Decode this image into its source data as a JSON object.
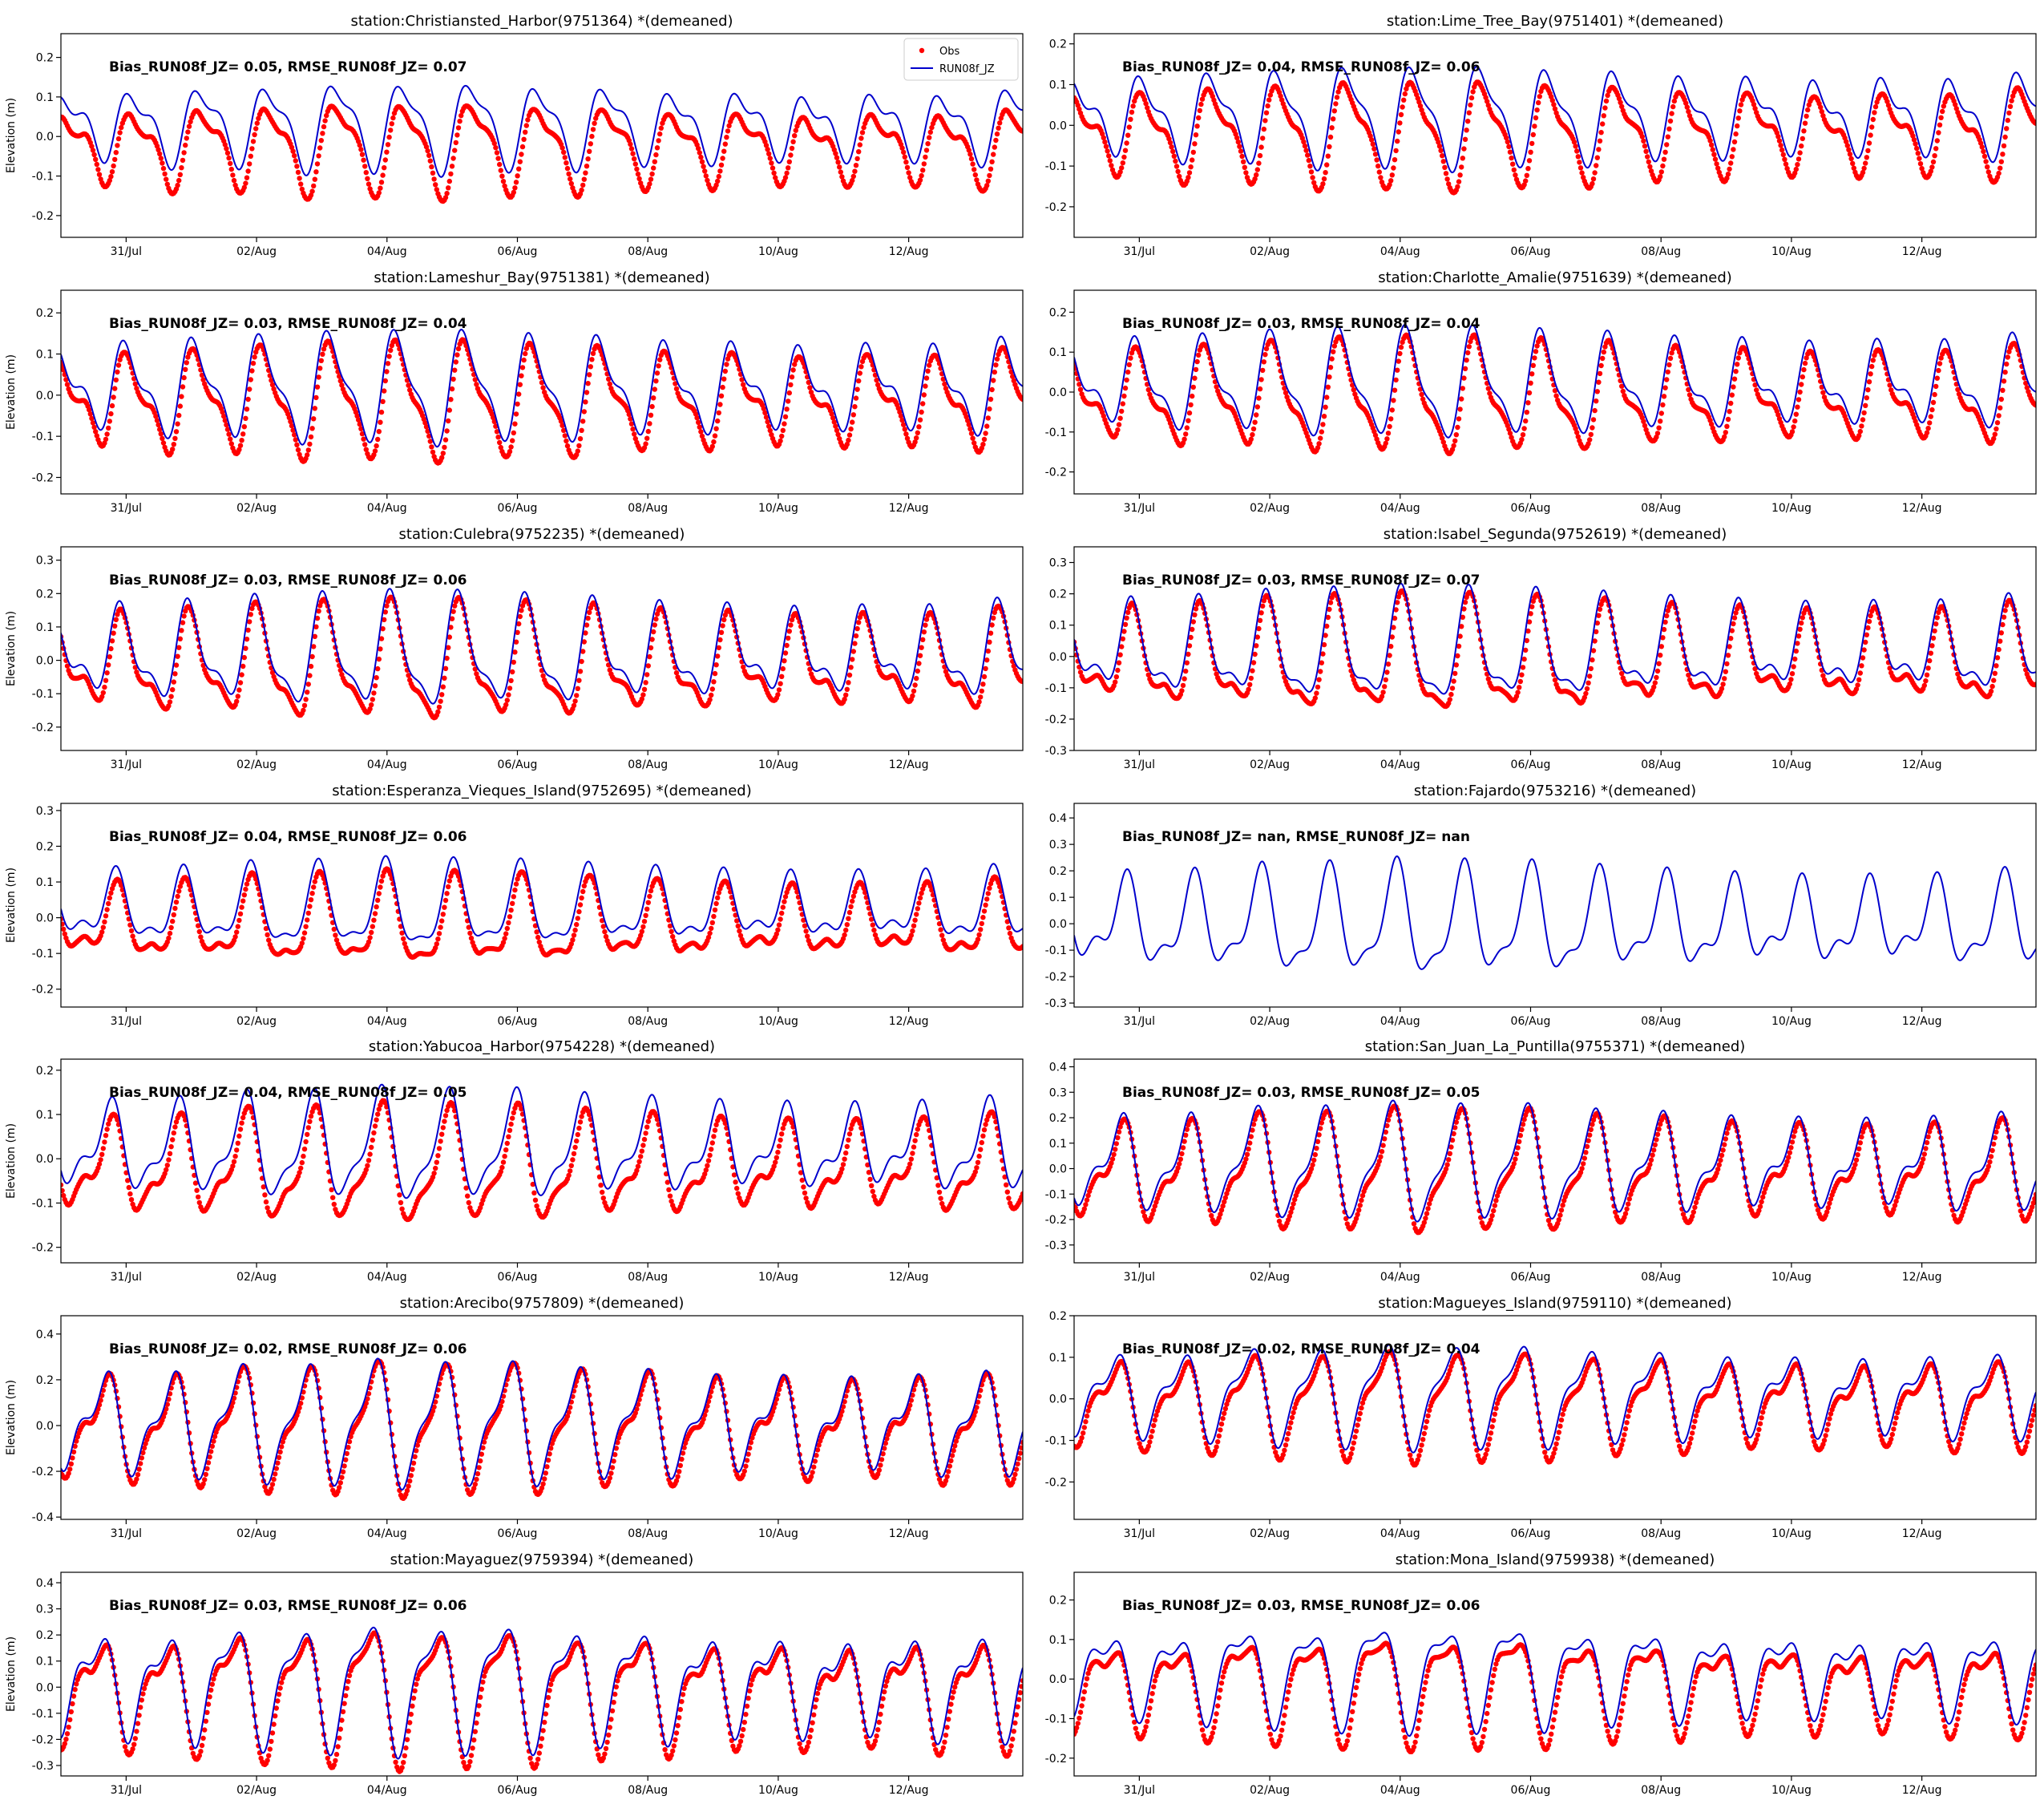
{
  "chart_data": [
    {
      "type": "line",
      "title": "station:Christiansted_Harbor(9751364) *(demeaned)",
      "ylabel": "Elevation (m)",
      "ylim": [
        -0.255,
        0.26
      ],
      "yticks": [
        -0.2,
        -0.1,
        0.0,
        0.1,
        0.2
      ],
      "stats": "Bias_RUN08f_JZ=  0.05, RMSE_RUN08f_JZ=  0.07",
      "amp": 0.1,
      "offset": 0.05,
      "obs": true,
      "legend": true
    },
    {
      "type": "line",
      "title": "station:Lime_Tree_Bay(9751401) *(demeaned)",
      "ylabel": "",
      "ylim": [
        -0.275,
        0.225
      ],
      "yticks": [
        -0.2,
        -0.1,
        0.0,
        0.1,
        0.2
      ],
      "stats": "Bias_RUN08f_JZ=  0.04, RMSE_RUN08f_JZ=  0.06",
      "amp": 0.11,
      "offset": 0.04,
      "obs": true,
      "legend": false
    },
    {
      "type": "line",
      "title": "station:Lameshur_Bay(9751381) *(demeaned)",
      "ylabel": "Elevation (m)",
      "ylim": [
        -0.24,
        0.255
      ],
      "yticks": [
        -0.2,
        -0.1,
        0.0,
        0.1,
        0.2
      ],
      "stats": "Bias_RUN08f_JZ=  0.03, RMSE_RUN08f_JZ=  0.04",
      "amp": 0.12,
      "offset": 0.03,
      "obs": true,
      "legend": false
    },
    {
      "type": "line",
      "title": "station:Charlotte_Amalie(9751639) *(demeaned)",
      "ylabel": "",
      "ylim": [
        -0.255,
        0.255
      ],
      "yticks": [
        -0.2,
        -0.1,
        0.0,
        0.1,
        0.2
      ],
      "stats": "Bias_RUN08f_JZ=  0.03, RMSE_RUN08f_JZ=  0.04",
      "amp": 0.12,
      "offset": 0.03,
      "obs": true,
      "legend": false
    },
    {
      "type": "line",
      "title": "station:Culebra(9752235) *(demeaned)",
      "ylabel": "Elevation (m)",
      "ylim": [
        -0.27,
        0.34
      ],
      "yticks": [
        -0.2,
        -0.1,
        0.0,
        0.1,
        0.2,
        0.3
      ],
      "stats": "Bias_RUN08f_JZ=  0.03, RMSE_RUN08f_JZ=  0.06",
      "amp": 0.15,
      "offset": 0.03,
      "obs": true,
      "legend": false
    },
    {
      "type": "line",
      "title": "station:Isabel_Segunda(9752619) *(demeaned)",
      "ylabel": "",
      "ylim": [
        -0.3,
        0.35
      ],
      "yticks": [
        -0.3,
        -0.2,
        -0.1,
        0.0,
        0.1,
        0.2,
        0.3
      ],
      "stats": "Bias_RUN08f_JZ=  0.03, RMSE_RUN08f_JZ=  0.07",
      "amp": 0.16,
      "offset": 0.03,
      "obs": true,
      "legend": false
    },
    {
      "type": "line",
      "title": "station:Esperanza_Vieques_Island(9752695) *(demeaned)",
      "ylabel": "Elevation (m)",
      "ylim": [
        -0.25,
        0.32
      ],
      "yticks": [
        -0.2,
        -0.1,
        0.0,
        0.1,
        0.2,
        0.3
      ],
      "stats": "Bias_RUN08f_JZ=  0.04, RMSE_RUN08f_JZ=  0.06",
      "amp": 0.11,
      "offset": 0.04,
      "obs": true,
      "legend": false
    },
    {
      "type": "line",
      "title": "station:Fajardo(9753216) *(demeaned)",
      "ylabel": "",
      "ylim": [
        -0.315,
        0.455
      ],
      "yticks": [
        -0.3,
        -0.2,
        -0.1,
        0.0,
        0.1,
        0.2,
        0.3,
        0.4
      ],
      "stats": "Bias_RUN08f_JZ=   nan, RMSE_RUN08f_JZ=   nan",
      "amp": 0.19,
      "offset": 0.0,
      "obs": false,
      "legend": false
    },
    {
      "type": "line",
      "title": "station:Yabucoa_Harbor(9754228) *(demeaned)",
      "ylabel": "Elevation (m)",
      "ylim": [
        -0.235,
        0.225
      ],
      "yticks": [
        -0.2,
        -0.1,
        0.0,
        0.1,
        0.2
      ],
      "stats": "Bias_RUN08f_JZ=  0.04, RMSE_RUN08f_JZ=  0.05",
      "amp": 0.11,
      "offset": 0.04,
      "obs": true,
      "legend": false
    },
    {
      "type": "line",
      "title": "station:San_Juan_La_Puntilla(9755371) *(demeaned)",
      "ylabel": "",
      "ylim": [
        -0.37,
        0.43
      ],
      "yticks": [
        -0.3,
        -0.2,
        -0.1,
        0.0,
        0.1,
        0.2,
        0.3,
        0.4
      ],
      "stats": "Bias_RUN08f_JZ=  0.03, RMSE_RUN08f_JZ=  0.05",
      "amp": 0.2,
      "offset": 0.03,
      "obs": true,
      "legend": false
    },
    {
      "type": "line",
      "title": "station:Arecibo(9757809) *(demeaned)",
      "ylabel": "Elevation (m)",
      "ylim": [
        -0.41,
        0.48
      ],
      "yticks": [
        -0.4,
        -0.2,
        0.0,
        0.2,
        0.4
      ],
      "stats": "Bias_RUN08f_JZ=  0.02, RMSE_RUN08f_JZ=  0.06",
      "amp": 0.24,
      "offset": 0.02,
      "obs": true,
      "legend": false
    },
    {
      "type": "line",
      "title": "station:Magueyes_Island(9759110) *(demeaned)",
      "ylabel": "",
      "ylim": [
        -0.29,
        0.2
      ],
      "yticks": [
        -0.2,
        -0.1,
        0.0,
        0.1,
        0.2
      ],
      "stats": "Bias_RUN08f_JZ=  0.02, RMSE_RUN08f_JZ=  0.04",
      "amp": 0.11,
      "offset": 0.02,
      "obs": true,
      "legend": false
    },
    {
      "type": "line",
      "title": "station:Mayaguez(9759394) *(demeaned)",
      "ylabel": "Elevation (m)",
      "ylim": [
        -0.34,
        0.44
      ],
      "yticks": [
        -0.3,
        -0.2,
        -0.1,
        0.0,
        0.1,
        0.2,
        0.3,
        0.4
      ],
      "stats": "Bias_RUN08f_JZ=  0.03, RMSE_RUN08f_JZ=  0.06",
      "amp": 0.22,
      "offset": 0.03,
      "obs": true,
      "legend": false
    },
    {
      "type": "line",
      "title": "station:Mona_Island(9759938) *(demeaned)",
      "ylabel": "",
      "ylim": [
        -0.245,
        0.27
      ],
      "yticks": [
        -0.2,
        -0.1,
        0.0,
        0.1,
        0.2
      ],
      "stats": "Bias_RUN08f_JZ=  0.03, RMSE_RUN08f_JZ=  0.06",
      "amp": 0.12,
      "offset": 0.03,
      "obs": true,
      "legend": false
    }
  ],
  "xaxis": {
    "xlim": [
      "2021-07-30",
      "2021-08-13 18:00"
    ],
    "ticks": [
      {
        "date": "2021-07-31",
        "label": "31/Jul"
      },
      {
        "date": "2021-08-02",
        "label": "02/Aug"
      },
      {
        "date": "2021-08-04",
        "label": "04/Aug"
      },
      {
        "date": "2021-08-06",
        "label": "06/Aug"
      },
      {
        "date": "2021-08-08",
        "label": "08/Aug"
      },
      {
        "date": "2021-08-10",
        "label": "10/Aug"
      },
      {
        "date": "2021-08-12",
        "label": "12/Aug"
      }
    ]
  },
  "legend": {
    "obs_label": "Obs",
    "model_label": "RUN08f_JZ",
    "position": "upper right"
  },
  "colors": {
    "obs": "#ff0000",
    "model": "#0000cc"
  }
}
